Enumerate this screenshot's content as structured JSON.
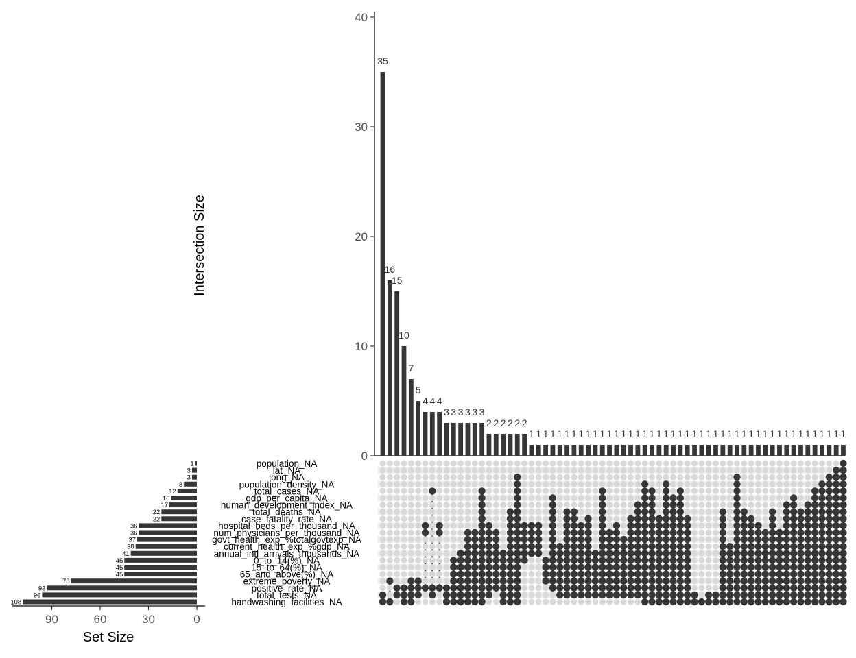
{
  "chart_data": {
    "type": "bar",
    "chart_kind": "upset",
    "intersection_axis": {
      "label": "Intersection Size",
      "ylim": [
        0,
        40
      ],
      "ticks": [
        0,
        10,
        20,
        30,
        40
      ]
    },
    "set_size_axis": {
      "label": "Set Size",
      "xlim": [
        0,
        108
      ],
      "reversed": true,
      "ticks": [
        90,
        60,
        30,
        0
      ]
    },
    "sets": [
      {
        "name": "population_NA",
        "size": 1
      },
      {
        "name": "lat_NA",
        "size": 3
      },
      {
        "name": "long_NA",
        "size": 3
      },
      {
        "name": "population_density_NA",
        "size": 8
      },
      {
        "name": "total_cases_NA",
        "size": 12
      },
      {
        "name": "gdp_per_capita_NA",
        "size": 16
      },
      {
        "name": "human_development_index_NA",
        "size": 17
      },
      {
        "name": "total_deaths_NA",
        "size": 22
      },
      {
        "name": "case_fatality_rate_NA",
        "size": 22
      },
      {
        "name": "hospital_beds_per_thousand_NA",
        "size": 36
      },
      {
        "name": "num_physicians_per_thousand_NA",
        "size": 36
      },
      {
        "name": "govt_health_exp_%totalgovtexp_NA",
        "size": 37
      },
      {
        "name": "current_health_exp_%gdp_NA",
        "size": 38
      },
      {
        "name": "annual_intl_arrivals_thousands_NA",
        "size": 41
      },
      {
        "name": "0_to_14(%)_NA",
        "size": 45
      },
      {
        "name": "15_to_64(%)_NA",
        "size": 45
      },
      {
        "name": "65_and_above(%)_NA",
        "size": 45
      },
      {
        "name": "extreme_poverty_NA",
        "size": 78
      },
      {
        "name": "positive_rate_NA",
        "size": 93
      },
      {
        "name": "total_tests_NA",
        "size": 96
      },
      {
        "name": "handwashing_facilities_NA",
        "size": 108
      }
    ],
    "set_size_labels": [
      "1",
      "3",
      "3",
      "8",
      "12",
      "16",
      "17",
      "22",
      "22",
      "36",
      "36",
      "37",
      "38",
      "41",
      "45",
      "45",
      "45",
      "78",
      "93",
      "96",
      "108"
    ],
    "intersections": [
      {
        "size": 35,
        "label": "35",
        "members": [
          19,
          20
        ]
      },
      {
        "size": 16,
        "label": "16",
        "members": [
          17,
          20
        ]
      },
      {
        "size": 15,
        "label": "15",
        "members": [
          18,
          19
        ]
      },
      {
        "size": 10,
        "label": "10",
        "members": [
          18,
          19,
          20
        ]
      },
      {
        "size": 7,
        "label": "7",
        "members": [
          17,
          18,
          19,
          20
        ]
      },
      {
        "size": 5,
        "label": "5",
        "members": [
          17,
          18,
          19
        ]
      },
      {
        "size": 4,
        "label": "4",
        "members": [
          9,
          10,
          18
        ]
      },
      {
        "size": 4,
        "label": "4",
        "members": [
          4,
          18,
          19
        ]
      },
      {
        "size": 4,
        "label": "4",
        "members": [
          9,
          10,
          18
        ]
      },
      {
        "size": 3,
        "label": "3",
        "members": [
          18,
          19,
          20
        ]
      },
      {
        "size": 3,
        "label": "3",
        "members": [
          14,
          15,
          16,
          17,
          18,
          19,
          20
        ]
      },
      {
        "size": 3,
        "label": "3",
        "members": [
          13,
          14,
          15,
          16,
          17,
          18,
          19,
          20
        ]
      },
      {
        "size": 3,
        "label": "3",
        "members": [
          10,
          11,
          12,
          13,
          14,
          15,
          16,
          17,
          18,
          19,
          20
        ]
      },
      {
        "size": 3,
        "label": "3",
        "members": [
          10,
          11,
          12,
          13,
          14,
          15,
          16,
          17,
          18,
          19,
          20
        ]
      },
      {
        "size": 3,
        "label": "3",
        "members": [
          4,
          5,
          6,
          7,
          8,
          9,
          10,
          11,
          12,
          13,
          14,
          15,
          16,
          17,
          18,
          19,
          20
        ]
      },
      {
        "size": 2,
        "label": "2",
        "members": [
          9,
          10,
          11,
          12,
          13,
          14,
          15,
          16,
          17,
          18,
          19
        ]
      },
      {
        "size": 2,
        "label": "2",
        "members": [
          10,
          11,
          12,
          13,
          14,
          15,
          16,
          17,
          18
        ]
      },
      {
        "size": 2,
        "label": "2",
        "members": [
          13,
          14,
          15,
          16,
          17,
          18,
          19,
          20
        ]
      },
      {
        "size": 2,
        "label": "2",
        "members": [
          7,
          8,
          9,
          10,
          11,
          12,
          13,
          14,
          15,
          16,
          17,
          18,
          19,
          20
        ]
      },
      {
        "size": 2,
        "label": "2",
        "members": [
          2,
          3,
          4,
          5,
          6,
          7,
          8,
          9,
          10,
          11,
          12,
          13,
          14,
          15,
          16,
          17,
          18,
          19,
          20
        ]
      },
      {
        "size": 2,
        "label": "2",
        "members": [
          9,
          10,
          11,
          12,
          13,
          14
        ]
      },
      {
        "size": 1,
        "label": "1",
        "members": [
          9,
          10,
          11,
          12,
          13
        ]
      },
      {
        "size": 1,
        "label": "1",
        "members": [
          9,
          10,
          11,
          12,
          13
        ]
      },
      {
        "size": 1,
        "label": "1",
        "members": [
          14,
          15,
          16,
          17
        ]
      },
      {
        "size": 1,
        "label": "1",
        "members": [
          5,
          6,
          7,
          8,
          9,
          10,
          11,
          12,
          13,
          14,
          15,
          16,
          17,
          18
        ]
      },
      {
        "size": 1,
        "label": "1",
        "members": [
          12,
          13,
          14,
          15,
          16,
          17,
          18,
          19
        ]
      },
      {
        "size": 1,
        "label": "1",
        "members": [
          7,
          8,
          9,
          10,
          11,
          12,
          13,
          14,
          15,
          16,
          17,
          18,
          19
        ]
      },
      {
        "size": 1,
        "label": "1",
        "members": [
          7,
          8,
          9,
          10,
          11,
          12,
          13,
          14,
          15,
          16,
          17,
          18,
          19
        ]
      },
      {
        "size": 1,
        "label": "1",
        "members": [
          9,
          10,
          11,
          12,
          13,
          14,
          15,
          16,
          17,
          18,
          19
        ]
      },
      {
        "size": 1,
        "label": "1",
        "members": [
          8,
          9,
          10,
          11,
          12,
          13,
          14,
          15,
          16,
          17,
          18,
          19
        ]
      },
      {
        "size": 1,
        "label": "1",
        "members": [
          13,
          14,
          15,
          16,
          17,
          18,
          19
        ]
      },
      {
        "size": 1,
        "label": "1",
        "members": [
          4,
          5,
          6,
          7,
          8,
          9,
          10,
          11,
          12,
          13,
          14,
          15,
          16,
          17,
          18,
          19
        ]
      },
      {
        "size": 1,
        "label": "1",
        "members": [
          10,
          11,
          12,
          13,
          14,
          15,
          16,
          17,
          18,
          19
        ]
      },
      {
        "size": 1,
        "label": "1",
        "members": [
          9,
          10,
          11,
          12,
          13,
          14,
          15,
          16,
          17,
          18,
          19
        ]
      },
      {
        "size": 1,
        "label": "1",
        "members": [
          11,
          12,
          13,
          14,
          15,
          16,
          17,
          18,
          19
        ]
      },
      {
        "size": 1,
        "label": "1",
        "members": [
          8,
          9,
          10,
          11,
          12,
          13,
          14,
          15,
          16,
          17,
          18,
          19
        ]
      },
      {
        "size": 1,
        "label": "1",
        "members": [
          6,
          7,
          8,
          9,
          10,
          11,
          12,
          13,
          14,
          15,
          16,
          17,
          18,
          19
        ]
      },
      {
        "size": 1,
        "label": "1",
        "members": [
          3,
          4,
          5,
          6,
          7,
          8,
          9,
          10,
          11,
          12,
          13,
          14,
          15,
          16,
          17,
          18,
          19,
          20
        ]
      },
      {
        "size": 1,
        "label": "1",
        "members": [
          4,
          5,
          6,
          7,
          8,
          9,
          10,
          11,
          12,
          13,
          14,
          15,
          16,
          17,
          18,
          19,
          20
        ]
      },
      {
        "size": 1,
        "label": "1",
        "members": [
          8,
          9,
          10,
          11,
          12,
          13,
          14,
          15,
          16,
          17,
          18,
          19,
          20
        ]
      },
      {
        "size": 1,
        "label": "1",
        "members": [
          3,
          4,
          5,
          6,
          7,
          8,
          9,
          10,
          11,
          12,
          13,
          14,
          15,
          16,
          17,
          18,
          19,
          20
        ]
      },
      {
        "size": 1,
        "label": "1",
        "members": [
          5,
          6,
          7,
          8,
          9,
          10,
          11,
          12,
          13,
          14,
          15,
          16,
          17,
          18,
          19,
          20
        ]
      },
      {
        "size": 1,
        "label": "1",
        "members": [
          4,
          5,
          6,
          7,
          8,
          9,
          10,
          11,
          12,
          13,
          14,
          15,
          16,
          17,
          18,
          19,
          20
        ]
      },
      {
        "size": 1,
        "label": "1",
        "members": [
          8,
          9,
          10,
          11,
          12,
          13,
          14,
          15,
          16,
          17,
          18,
          19,
          20
        ]
      },
      {
        "size": 1,
        "label": "1",
        "members": [
          19,
          20
        ]
      },
      {
        "size": 1,
        "label": "1",
        "members": [
          20
        ]
      },
      {
        "size": 1,
        "label": "1",
        "members": [
          19,
          20
        ]
      },
      {
        "size": 1,
        "label": "1",
        "members": [
          19,
          20
        ]
      },
      {
        "size": 1,
        "label": "1",
        "members": [
          7,
          8,
          9,
          10,
          11,
          12,
          13,
          14,
          15,
          16,
          17,
          18,
          19,
          20
        ]
      },
      {
        "size": 1,
        "label": "1",
        "members": [
          12,
          13,
          14,
          15,
          16,
          17,
          18,
          19,
          20
        ]
      },
      {
        "size": 1,
        "label": "1",
        "members": [
          2,
          3,
          4,
          5,
          6,
          7,
          8,
          9,
          10,
          11,
          12,
          13,
          14,
          15,
          16,
          17,
          18,
          19,
          20
        ]
      },
      {
        "size": 1,
        "label": "1",
        "members": [
          7,
          8,
          9,
          10,
          11,
          12,
          13,
          14,
          15,
          16,
          17,
          18,
          19,
          20
        ]
      },
      {
        "size": 1,
        "label": "1",
        "members": [
          8,
          9,
          10,
          11,
          12,
          13,
          14,
          15,
          16,
          17,
          18,
          19,
          20
        ]
      },
      {
        "size": 1,
        "label": "1",
        "members": [
          9,
          10,
          11,
          12,
          13,
          14,
          15,
          16,
          17,
          18,
          19,
          20
        ]
      },
      {
        "size": 1,
        "label": "1",
        "members": [
          10,
          11,
          12,
          13,
          14,
          15,
          16,
          17,
          18,
          19,
          20
        ]
      },
      {
        "size": 1,
        "label": "1",
        "members": [
          7,
          8,
          9,
          10,
          11,
          12,
          13,
          14,
          15,
          16,
          17,
          18,
          19,
          20
        ]
      },
      {
        "size": 1,
        "label": "1",
        "members": [
          10,
          11,
          12,
          13,
          14,
          15,
          16,
          17,
          18,
          19,
          20
        ]
      },
      {
        "size": 1,
        "label": "1",
        "members": [
          6,
          7,
          8,
          9,
          10,
          11,
          12,
          13,
          14,
          15,
          16,
          17,
          18,
          19,
          20
        ]
      },
      {
        "size": 1,
        "label": "1",
        "members": [
          5,
          6,
          7,
          8,
          9,
          10,
          11,
          12,
          13,
          14,
          15,
          16,
          17,
          18,
          19,
          20
        ]
      },
      {
        "size": 1,
        "label": "1",
        "members": [
          7,
          8,
          9,
          10,
          11,
          12,
          13,
          14,
          15,
          16,
          17,
          18,
          19,
          20
        ]
      },
      {
        "size": 1,
        "label": "1",
        "members": [
          6,
          7,
          8,
          9,
          10,
          11,
          12,
          13,
          14,
          15,
          16,
          17,
          18,
          19,
          20
        ]
      },
      {
        "size": 1,
        "label": "1",
        "members": [
          4,
          5,
          6,
          7,
          8,
          9,
          10,
          11,
          12,
          13,
          14,
          15,
          16,
          17,
          18,
          19,
          20
        ]
      },
      {
        "size": 1,
        "label": "1",
        "members": [
          3,
          4,
          5,
          6,
          7,
          8,
          9,
          10,
          11,
          12,
          13,
          14,
          15,
          16,
          17,
          18,
          19,
          20
        ]
      },
      {
        "size": 1,
        "label": "1",
        "members": [
          2,
          3,
          4,
          5,
          6,
          7,
          8,
          9,
          10,
          11,
          12,
          13,
          14,
          15,
          16,
          17,
          18,
          19,
          20
        ]
      },
      {
        "size": 1,
        "label": "1",
        "members": [
          1,
          2,
          3,
          4,
          5,
          6,
          7,
          8,
          9,
          10,
          11,
          12,
          13,
          14,
          15,
          16,
          17,
          18,
          19,
          20
        ]
      },
      {
        "size": 1,
        "label": "1",
        "members": [
          0,
          1,
          2,
          3,
          4,
          5,
          6,
          7,
          8,
          9,
          10,
          11,
          12,
          13,
          14,
          15,
          16,
          17,
          18,
          19,
          20
        ]
      }
    ],
    "colors": {
      "bar": "#363636",
      "dot_active": "#363636",
      "dot_inactive": "#d9d9d9",
      "matrix_stripe": "#f2f2f2",
      "axis": "#333333",
      "tick_text": "#4d4d4d"
    },
    "grid": false
  }
}
